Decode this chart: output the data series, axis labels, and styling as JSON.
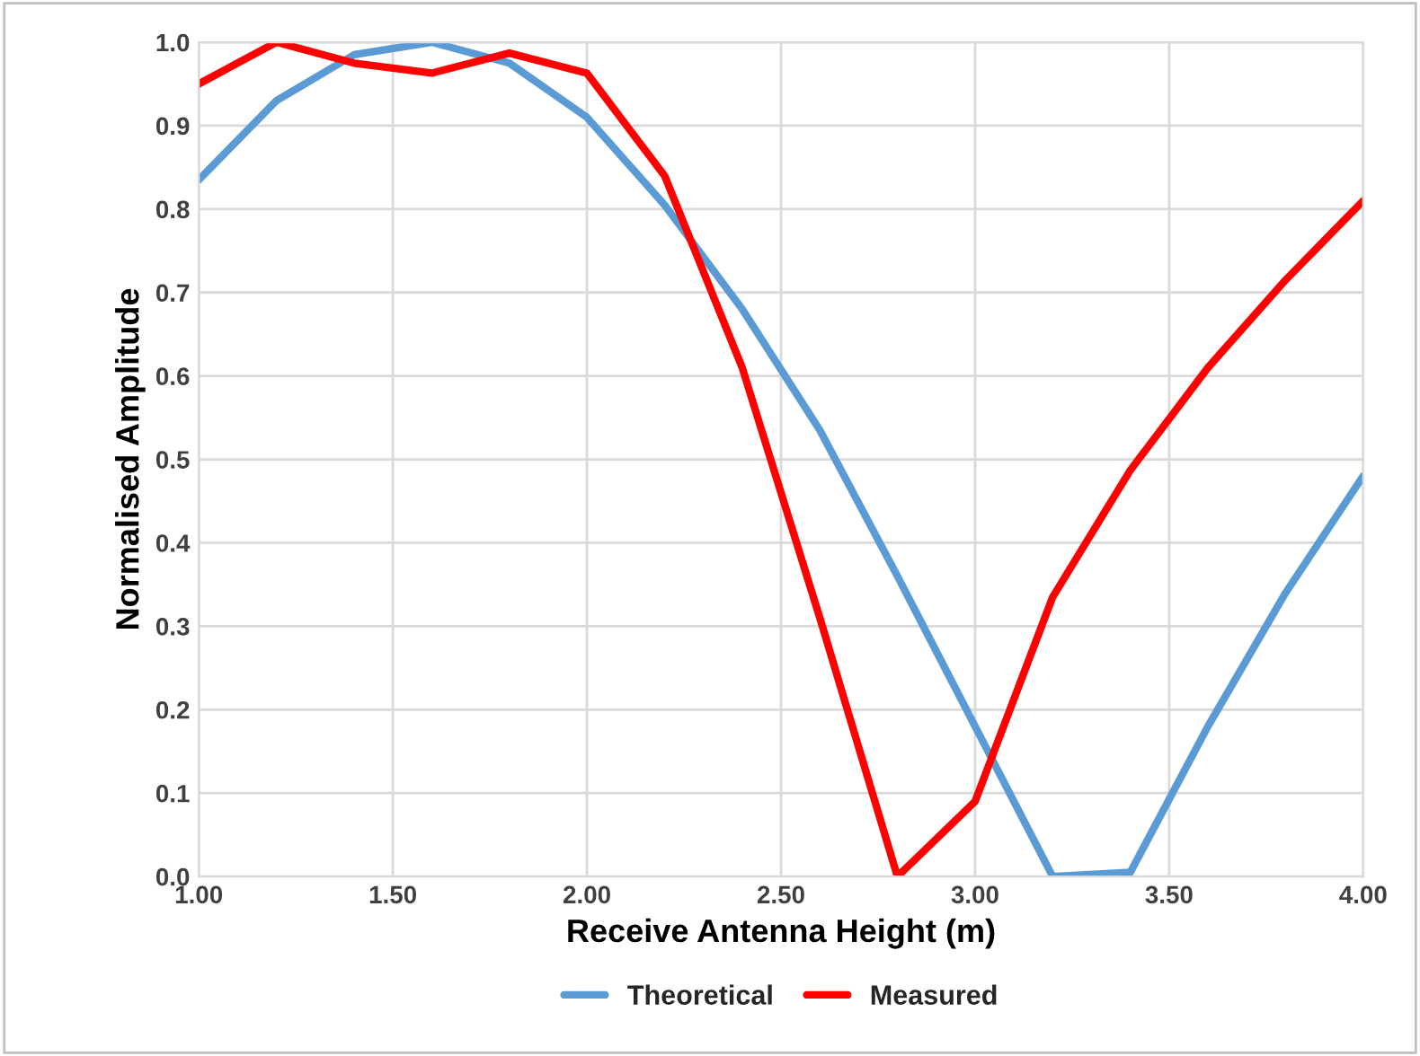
{
  "chart_data": {
    "type": "line",
    "xlabel": "Receive Antenna Height (m)",
    "ylabel": "Normalised Amplitude",
    "x": [
      1.0,
      1.2,
      1.4,
      1.6,
      1.8,
      2.0,
      2.2,
      2.4,
      2.6,
      2.8,
      3.0,
      3.2,
      3.4,
      3.6,
      3.8,
      4.0
    ],
    "series": [
      {
        "name": "Theoretical",
        "color": "#5b9bd5",
        "values": [
          0.835,
          0.93,
          0.985,
          1.0,
          0.975,
          0.91,
          0.805,
          0.68,
          0.535,
          0.36,
          0.18,
          0.0,
          0.005,
          0.18,
          0.34,
          0.48
        ]
      },
      {
        "name": "Measured",
        "color": "#ff0000",
        "values": [
          0.95,
          1.0,
          0.975,
          0.963,
          0.987,
          0.963,
          0.84,
          0.61,
          0.31,
          0.0,
          0.09,
          0.335,
          0.487,
          0.61,
          0.715,
          0.81
        ]
      }
    ],
    "xlim": [
      1.0,
      4.0
    ],
    "ylim": [
      0.0,
      1.0
    ],
    "xticks": [
      {
        "value": 1.0,
        "label": "1.00"
      },
      {
        "value": 1.5,
        "label": "1.50"
      },
      {
        "value": 2.0,
        "label": "2.00"
      },
      {
        "value": 2.5,
        "label": "2.50"
      },
      {
        "value": 3.0,
        "label": "3.00"
      },
      {
        "value": 3.5,
        "label": "3.50"
      },
      {
        "value": 4.0,
        "label": "4.00"
      }
    ],
    "yticks": [
      {
        "value": 0.0,
        "label": "0.0"
      },
      {
        "value": 0.1,
        "label": "0.1"
      },
      {
        "value": 0.2,
        "label": "0.2"
      },
      {
        "value": 0.3,
        "label": "0.3"
      },
      {
        "value": 0.4,
        "label": "0.4"
      },
      {
        "value": 0.5,
        "label": "0.5"
      },
      {
        "value": 0.6,
        "label": "0.6"
      },
      {
        "value": 0.7,
        "label": "0.7"
      },
      {
        "value": 0.8,
        "label": "0.8"
      },
      {
        "value": 0.9,
        "label": "0.9"
      },
      {
        "value": 1.0,
        "label": "1.0"
      }
    ],
    "grid": true,
    "legend": "bottom",
    "marker": "none",
    "line_style": "solid"
  }
}
